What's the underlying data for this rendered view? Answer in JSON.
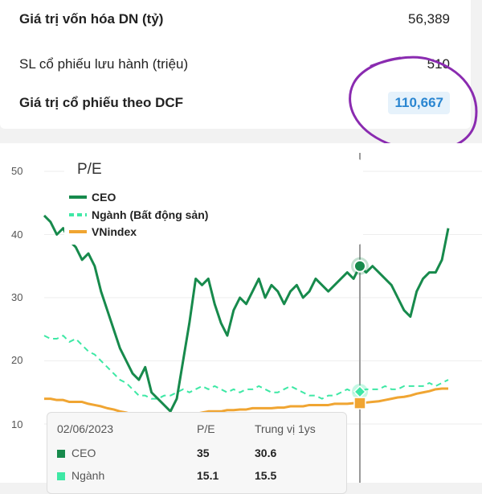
{
  "summary": {
    "rows": [
      {
        "label": "Giá trị vốn hóa DN (tỷ)",
        "value": "56,389"
      },
      {
        "label": "SL cổ phiếu lưu hành (triệu)",
        "value": "510"
      },
      {
        "label": "Giá trị cổ phiếu theo DCF",
        "value": "110,667"
      }
    ]
  },
  "chart_data": {
    "type": "line",
    "title": "P/E",
    "ylim": [
      9,
      51
    ],
    "yticks": [
      "50",
      "40",
      "30",
      "20",
      "10"
    ],
    "legend_position": "top-left",
    "series": [
      {
        "name": "CEO",
        "color": "#178a4c",
        "style": "solid",
        "values": [
          43,
          42,
          40,
          41,
          39,
          38,
          36,
          37,
          35,
          31,
          28,
          25,
          22,
          20,
          18,
          17,
          19,
          15,
          14,
          13,
          12,
          14,
          20,
          26,
          33,
          32,
          33,
          29,
          26,
          24,
          28,
          30,
          29,
          31,
          33,
          30,
          32,
          31,
          29,
          31,
          32,
          30,
          31,
          33,
          32,
          31,
          32,
          33,
          34,
          33,
          35,
          34,
          35,
          34,
          33,
          32,
          30,
          28,
          27,
          31,
          33,
          34,
          34,
          36,
          41
        ]
      },
      {
        "name": "Ngành (Bất động sản)",
        "color": "#3ee8a5",
        "style": "dashed",
        "values": [
          24,
          23.5,
          23.5,
          24,
          23,
          23.5,
          22.5,
          21.5,
          21,
          20,
          19,
          18,
          17,
          16.5,
          15.5,
          14.5,
          14.5,
          14,
          14,
          14.5,
          14.5,
          15,
          15.5,
          15,
          15.5,
          16,
          15.5,
          16,
          15.5,
          15,
          15.5,
          15,
          15.5,
          15.5,
          16,
          15.5,
          15,
          15,
          15.5,
          16,
          15.5,
          15,
          14.5,
          14.5,
          14,
          14.5,
          14.5,
          15,
          15.5,
          15,
          15.1,
          15.5,
          15.5,
          15.5,
          16,
          15.5,
          15.5,
          16,
          16,
          16,
          16,
          16.5,
          16,
          16.5,
          17
        ]
      },
      {
        "name": "VNindex",
        "color": "#f0a532",
        "style": "solid",
        "values": [
          14,
          14,
          13.8,
          13.8,
          13.5,
          13.5,
          13.5,
          13.2,
          13,
          12.8,
          12.5,
          12.3,
          12,
          11.8,
          11.5,
          11.3,
          11.2,
          11,
          11,
          11,
          11.2,
          11.3,
          11.5,
          11.5,
          11.6,
          11.8,
          12,
          12,
          12,
          12.2,
          12.2,
          12.3,
          12.3,
          12.5,
          12.5,
          12.5,
          12.5,
          12.6,
          12.6,
          12.8,
          12.8,
          12.8,
          13,
          13,
          13,
          13,
          13.2,
          13.2,
          13.2,
          13.3,
          13.3,
          13.4,
          13.5,
          13.6,
          13.8,
          14,
          14.2,
          14.3,
          14.5,
          14.8,
          15,
          15.2,
          15.5,
          15.6,
          15.6
        ]
      }
    ],
    "cursor_index": 50,
    "tooltip": {
      "date": "02/06/2023",
      "col1": "P/E",
      "col2": "Trung vị 1ys",
      "rows": [
        {
          "name": "CEO",
          "pe": "35",
          "median": "30.6",
          "color": "#178a4c"
        },
        {
          "name": "Ngành",
          "pe": "15.1",
          "median": "15.5",
          "color": "#3ee8a5"
        }
      ]
    }
  },
  "annotation": {
    "color": "#8a2bb0"
  }
}
